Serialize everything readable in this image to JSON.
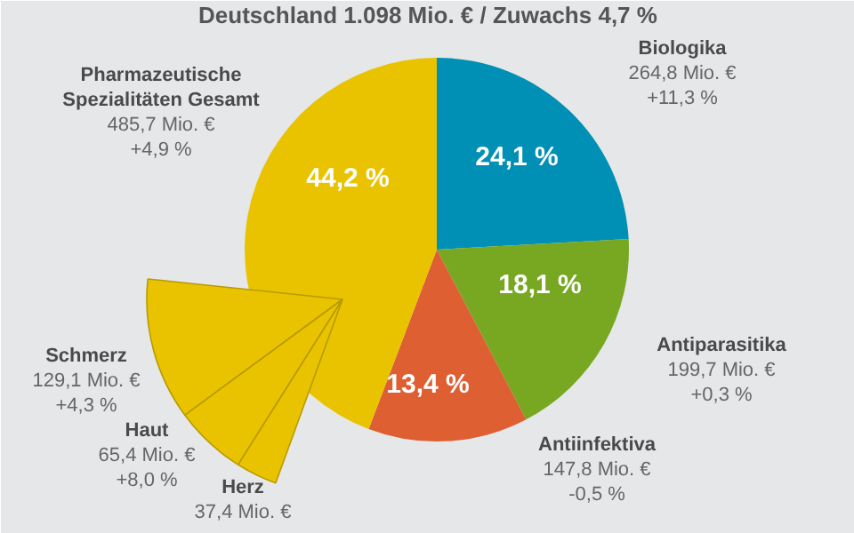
{
  "chart_data": [
    {
      "type": "pie",
      "title": "Deutschland 1.098 Mio. € / Zuwachs 4,7 %",
      "categories": [
        "Biologika",
        "Antiparasitika",
        "Antiinfektiva",
        "Pharmazeutische\nSpezialitäten Gesamt"
      ],
      "values": [
        264.8,
        199.7,
        147.8,
        485.7
      ],
      "colors": [
        "#0090b5",
        "#78a822",
        "#dd5f32",
        "#e9c300"
      ],
      "value_labels": [
        "264,8 Mio. €\n+11,3 %",
        "199,7 Mio. €\n+0,3 %",
        "147,8 Mio. €\n-0,5 %",
        "485,7 Mio. €\n+4,9 %"
      ],
      "annotations": [
        "24,1 %",
        "18,1 %",
        "13,4 %",
        "44,2 %"
      ],
      "legend": false
    },
    {
      "type": "pie",
      "categories": [
        "Schmerz",
        "Haut",
        "Herz"
      ],
      "values": [
        129.1,
        65.4,
        37.4
      ],
      "colors": [
        "#e9c300",
        "#e9c300",
        "#e9c300"
      ],
      "value_labels": [
        "129,1 Mio. €\n+4,3 %",
        "65,4 Mio. €\n+8,0 %",
        "37,4 Mio. €"
      ],
      "legend": false
    }
  ]
}
